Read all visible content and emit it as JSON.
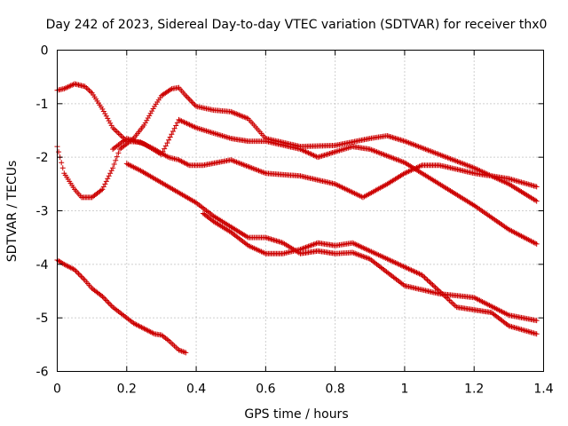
{
  "chart_data": {
    "type": "scatter",
    "title": "Day 242 of 2023, Sidereal Day-to-day VTEC variation (SDTVAR) for receiver thx0",
    "xlabel": "GPS time / hours",
    "ylabel": "SDTVAR / TECUs",
    "xlim": [
      0,
      1.4
    ],
    "ylim": [
      -6,
      0
    ],
    "xticks": [
      "0",
      "0.2",
      "0.4",
      "0.6",
      "0.8",
      "1",
      "1.2",
      "1.4"
    ],
    "xtick_values": [
      0,
      0.2,
      0.4,
      0.6,
      0.8,
      1.0,
      1.2,
      1.4
    ],
    "yticks": [
      "0",
      "-1",
      "-2",
      "-3",
      "-4",
      "-5",
      "-6"
    ],
    "ytick_values": [
      0,
      -1,
      -2,
      -3,
      -4,
      -5,
      -6
    ],
    "grid": true,
    "marker": "+",
    "color": "#cc0000",
    "series": [
      {
        "name": "track-1",
        "x": [
          0,
          0.02,
          0.05,
          0.08,
          0.1,
          0.13,
          0.16,
          0.2,
          0.24,
          0.28,
          0.32,
          0.35,
          0.38,
          0.42,
          0.5,
          0.6,
          0.7,
          0.8,
          0.88,
          0.95,
          1.0,
          1.05,
          1.1,
          1.2,
          1.3,
          1.38
        ],
        "y": [
          -0.75,
          -0.72,
          -0.63,
          -0.68,
          -0.8,
          -1.1,
          -1.45,
          -1.7,
          -1.72,
          -1.85,
          -2.0,
          -2.05,
          -2.15,
          -2.15,
          -2.05,
          -2.3,
          -2.35,
          -2.5,
          -2.75,
          -2.5,
          -2.3,
          -2.15,
          -2.15,
          -2.3,
          -2.4,
          -2.55
        ]
      },
      {
        "name": "track-2",
        "x": [
          0,
          0.02,
          0.05,
          0.07,
          0.1,
          0.13,
          0.16,
          0.18,
          0.22,
          0.25,
          0.28,
          0.3,
          0.33,
          0.35,
          0.37,
          0.4,
          0.45,
          0.5,
          0.55,
          0.6,
          0.7,
          0.8,
          0.9,
          0.95,
          1.0,
          1.1,
          1.2,
          1.3,
          1.38
        ],
        "y": [
          -1.8,
          -2.3,
          -2.6,
          -2.75,
          -2.75,
          -2.6,
          -2.2,
          -1.85,
          -1.65,
          -1.4,
          -1.05,
          -0.85,
          -0.72,
          -0.7,
          -0.85,
          -1.05,
          -1.12,
          -1.15,
          -1.28,
          -1.65,
          -1.8,
          -1.78,
          -1.65,
          -1.6,
          -1.7,
          -1.95,
          -2.2,
          -2.5,
          -2.82
        ]
      },
      {
        "name": "track-3",
        "x": [
          0.16,
          0.2,
          0.25,
          0.3,
          0.35,
          0.4,
          0.45,
          0.5,
          0.55,
          0.6,
          0.7,
          0.75,
          0.8,
          0.85,
          0.9,
          1.0,
          1.1,
          1.2,
          1.3,
          1.38
        ],
        "y": [
          -1.85,
          -1.65,
          -1.75,
          -1.95,
          -1.3,
          -1.45,
          -1.55,
          -1.65,
          -1.7,
          -1.7,
          -1.85,
          -2.0,
          -1.9,
          -1.8,
          -1.85,
          -2.1,
          -2.5,
          -2.9,
          -3.35,
          -3.62
        ]
      },
      {
        "name": "track-4",
        "x": [
          0.2,
          0.24,
          0.28,
          0.32,
          0.36,
          0.4,
          0.45,
          0.5,
          0.55,
          0.6,
          0.65,
          0.7,
          0.75,
          0.8,
          0.85,
          0.9,
          1.0,
          1.1,
          1.2,
          1.3,
          1.38
        ],
        "y": [
          -2.12,
          -2.25,
          -2.4,
          -2.55,
          -2.7,
          -2.85,
          -3.1,
          -3.3,
          -3.5,
          -3.5,
          -3.6,
          -3.8,
          -3.75,
          -3.8,
          -3.78,
          -3.9,
          -4.4,
          -4.55,
          -4.62,
          -4.95,
          -5.05
        ]
      },
      {
        "name": "track-5",
        "x": [
          0.42,
          0.45,
          0.5,
          0.55,
          0.6,
          0.65,
          0.7,
          0.75,
          0.8,
          0.85,
          0.9,
          0.95,
          1.0,
          1.05,
          1.1,
          1.15,
          1.2,
          1.25,
          1.3,
          1.38
        ],
        "y": [
          -3.05,
          -3.2,
          -3.4,
          -3.65,
          -3.8,
          -3.8,
          -3.72,
          -3.6,
          -3.65,
          -3.6,
          -3.75,
          -3.9,
          -4.05,
          -4.2,
          -4.5,
          -4.8,
          -4.85,
          -4.9,
          -5.15,
          -5.3
        ]
      },
      {
        "name": "track-6",
        "x": [
          0,
          0.02,
          0.05,
          0.08,
          0.1,
          0.13,
          0.16,
          0.2,
          0.22,
          0.25,
          0.28,
          0.3,
          0.32,
          0.35,
          0.37
        ],
        "y": [
          -3.92,
          -4.0,
          -4.1,
          -4.3,
          -4.45,
          -4.6,
          -4.8,
          -5.0,
          -5.1,
          -5.2,
          -5.3,
          -5.32,
          -5.42,
          -5.6,
          -5.65
        ]
      }
    ]
  }
}
